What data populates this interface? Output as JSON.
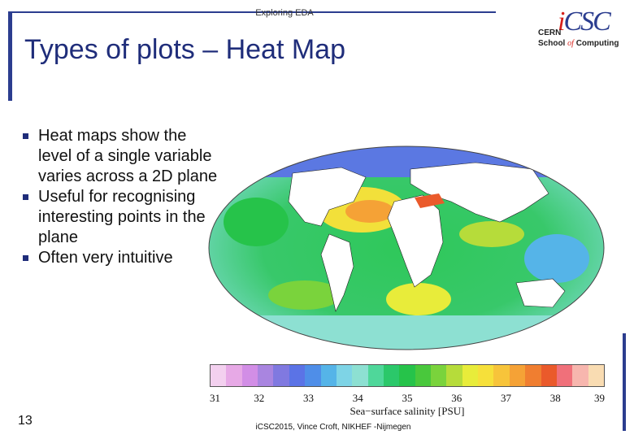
{
  "slide": {
    "header": "Exploring EDA",
    "title": "Types of plots – Heat Map",
    "page_number": "13",
    "footer": "iCSC2015, Vince Croft, NIKHEF -Nijmegen"
  },
  "logo": {
    "mark_i": "i",
    "mark_rest": "CSC",
    "line1": "CERN",
    "line2_a": "School",
    "line2_of": "of",
    "line2_b": "Computing"
  },
  "bullets": [
    "Heat maps show the level of a single variable varies across a 2D plane",
    "Useful for recognising interesting points in the plane",
    "Often very intuitive"
  ],
  "colorbar": {
    "label": "Sea−surface salinity [PSU]",
    "ticks": [
      "31",
      "32",
      "33",
      "34",
      "35",
      "36",
      "37",
      "38",
      "39"
    ],
    "colors": [
      "#f3d0ef",
      "#e7a9e6",
      "#d28ee6",
      "#a985e0",
      "#8079e0",
      "#5b73e6",
      "#4f8ee8",
      "#55b4e8",
      "#7ed4e6",
      "#8de0d2",
      "#4fd79a",
      "#2bc86a",
      "#26c34a",
      "#49c83c",
      "#7ad33c",
      "#b6dc3a",
      "#e8ec3a",
      "#f6e03a",
      "#f7c43a",
      "#f5a236",
      "#f07e30",
      "#ea5a2b",
      "#f0707a",
      "#f7b6ae",
      "#f9dcb2"
    ]
  },
  "chart_data": {
    "type": "heatmap",
    "title": "",
    "xlabel": "",
    "ylabel": "",
    "colorbar_label": "Sea−surface salinity [PSU]",
    "range": [
      31,
      39
    ],
    "ticks": [
      31,
      32,
      33,
      34,
      35,
      36,
      37,
      38,
      39
    ]
  }
}
